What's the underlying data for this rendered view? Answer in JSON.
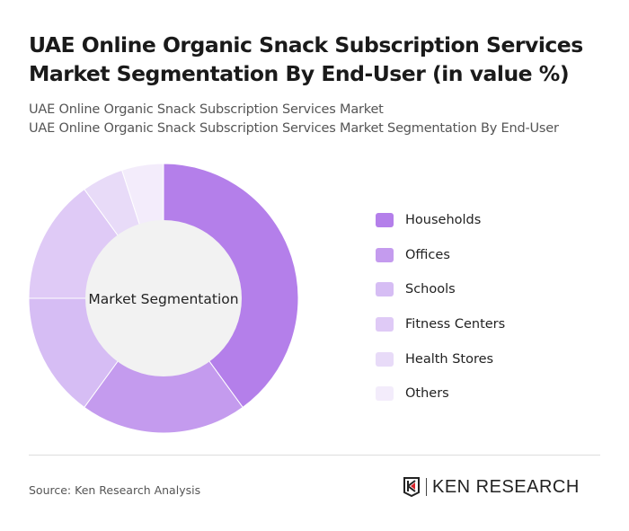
{
  "title": "UAE Online Organic Snack Subscription Services Market Segmentation By End-User (in value %)",
  "subtitle_1": "UAE Online Organic Snack Subscription Services Market",
  "subtitle_2": "UAE Online Organic Snack Subscription Services Market Segmentation By End-User",
  "source": "Source: Ken Research Analysis",
  "logo_text": "KEN RESEARCH",
  "chart_data": {
    "type": "pie",
    "variant": "donut",
    "center_label": "Market Segmentation",
    "categories": [
      "Households",
      "Offices",
      "Schools",
      "Fitness Centers",
      "Health Stores",
      "Others"
    ],
    "values": [
      40,
      20,
      15,
      15,
      5,
      5
    ],
    "unit": "%",
    "colors": [
      "#b47fea",
      "#c49bee",
      "#d6bdf4",
      "#dfcaf6",
      "#e8dbf8",
      "#f3ecfb"
    ],
    "legend_placement": "right"
  }
}
